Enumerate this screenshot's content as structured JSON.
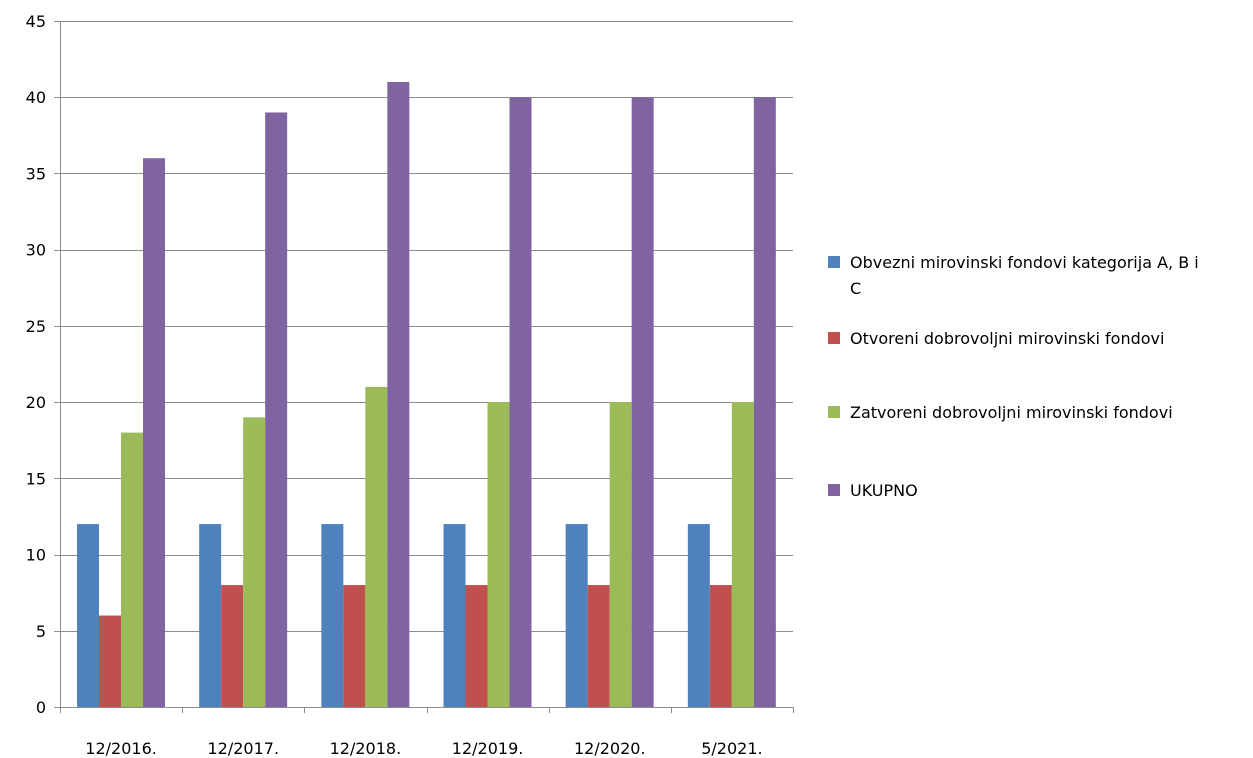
{
  "chart_data": {
    "type": "bar",
    "categories": [
      "12/2016.",
      "12/2017.",
      "12/2018.",
      "12/2019.",
      "12/2020.",
      "5/2021."
    ],
    "series": [
      {
        "name": "Obvezni mirovinski fondovi kategorija A, B i C",
        "color": "#4f81bd",
        "values": [
          12,
          12,
          12,
          12,
          12,
          12
        ]
      },
      {
        "name": "Otvoreni dobrovoljni mirovinski fondovi",
        "color": "#c0504d",
        "values": [
          6,
          8,
          8,
          8,
          8,
          8
        ]
      },
      {
        "name": "Zatvoreni dobrovoljni mirovinski fondovi",
        "color": "#9bbb59",
        "values": [
          18,
          19,
          21,
          20,
          20,
          20
        ]
      },
      {
        "name": "UKUPNO",
        "color": "#8064a2",
        "values": [
          36,
          39,
          41,
          40,
          40,
          40
        ]
      }
    ],
    "ylim": [
      0,
      45
    ],
    "yticks": [
      0,
      5,
      10,
      15,
      20,
      25,
      30,
      35,
      40,
      45
    ],
    "grid": true,
    "legend_position": "right"
  }
}
